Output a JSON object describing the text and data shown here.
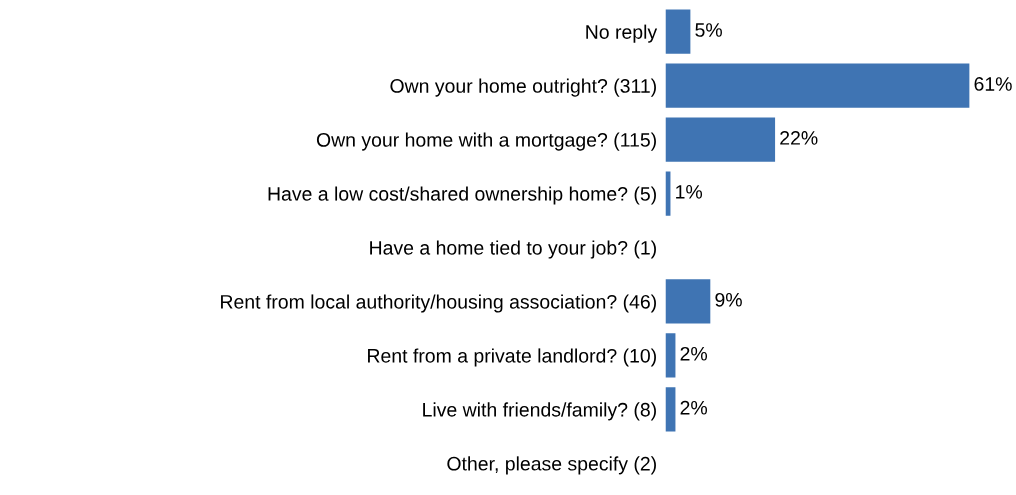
{
  "chart_data": {
    "type": "bar",
    "orientation": "horizontal",
    "categories": [
      "No reply",
      "Own your home outright? (311)",
      "Own your home with a mortgage? (115)",
      "Have a low cost/shared ownership home? (5)",
      "Have a home tied to your job? (1)",
      "Rent from local authority/housing association? (46)",
      "Rent from a private landlord? (10)",
      "Live with friends/family? (8)",
      "Other, please specify (2)"
    ],
    "values": [
      5,
      61,
      22,
      1,
      0,
      9,
      2,
      2,
      0
    ],
    "value_labels": [
      "5%",
      "61%",
      "22%",
      "1%",
      null,
      "9%",
      "2%",
      "2%",
      null
    ],
    "color": "#3f74b3",
    "grid": false,
    "legend": false
  }
}
